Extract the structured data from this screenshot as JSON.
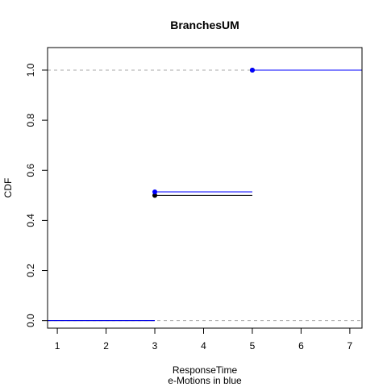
{
  "chart_data": {
    "type": "step",
    "title": "BranchesUM",
    "xlabel": "ResponseTime",
    "xlabel_sub": "e-Motions in blue",
    "ylabel": "CDF",
    "xlim": [
      0.8,
      7.25
    ],
    "ylim": [
      -0.03,
      1.09
    ],
    "x_ticks": [
      1,
      2,
      3,
      4,
      5,
      6,
      7
    ],
    "y_ticks": [
      0.0,
      0.2,
      0.4,
      0.6,
      0.8,
      1.0
    ],
    "y_tick_labels": [
      "0.0",
      "0.2",
      "0.4",
      "0.6",
      "0.8",
      "1.0"
    ],
    "reference_lines": [
      0.0,
      1.0
    ],
    "reference_line_color": "#aaaaaa",
    "series": [
      {
        "color": "#000000",
        "segments": [
          {
            "x0": 0.8,
            "x1": 3,
            "y": 0.0
          },
          {
            "x0": 3,
            "x1": 5,
            "y": 0.5
          },
          {
            "x0": 5,
            "x1": 7.25,
            "y": 1.0
          }
        ],
        "points": [
          {
            "x": 3,
            "y": 0.5
          },
          {
            "x": 5,
            "y": 1.0
          }
        ]
      },
      {
        "color": "#0000ff",
        "segments": [
          {
            "x0": 0.8,
            "x1": 3,
            "y": 0.0
          },
          {
            "x0": 3,
            "x1": 5,
            "y": 0.514
          },
          {
            "x0": 5,
            "x1": 7.25,
            "y": 1.0
          }
        ],
        "points": [
          {
            "x": 3,
            "y": 0.514
          },
          {
            "x": 5,
            "y": 1.0
          }
        ]
      }
    ]
  }
}
